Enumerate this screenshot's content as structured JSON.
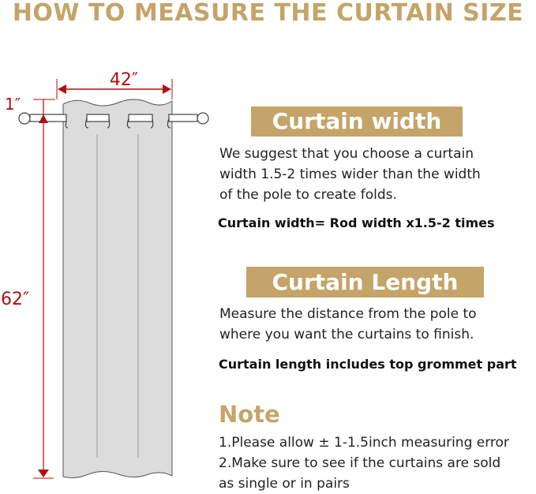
{
  "title": "HOW TO MEASURE THE CURTAIN SIZE",
  "diagram": {
    "width_label": "42″",
    "top_label": "1″",
    "length_label": "62″",
    "accent_color": "#b01010",
    "curtain_color": "#dcdcdc"
  },
  "width_section": {
    "heading": "Curtain width",
    "lines": [
      "We suggest that you choose a curtain",
      "width 1.5-2 times wider than the width",
      "of the pole to create folds."
    ],
    "formula": "Curtain width= Rod width x1.5-2 times"
  },
  "length_section": {
    "heading": "Curtain Length",
    "lines": [
      "Measure the distance from the pole to",
      "where you want the curtains to finish."
    ],
    "formula": "Curtain length includes top grommet part"
  },
  "note": {
    "heading": "Note",
    "lines": [
      "1.Please allow ± 1-1.5inch measuring error",
      "2.Make sure to see if the curtains are sold",
      "as single or in pairs"
    ]
  },
  "brand_color": "#c4a468"
}
